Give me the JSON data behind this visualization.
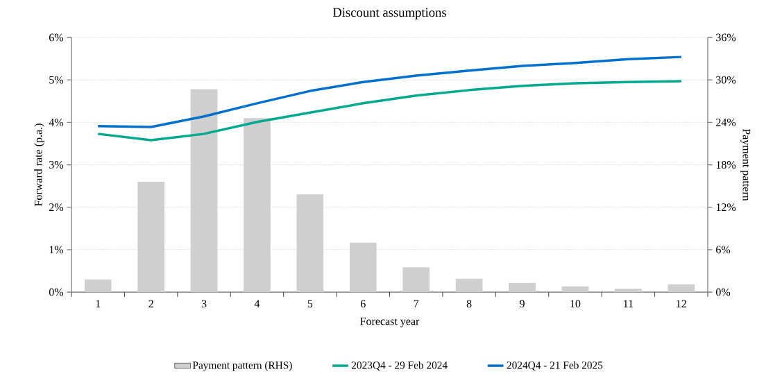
{
  "chart_data": {
    "type": "line",
    "title": "Discount assumptions",
    "xlabel": "Forecast year",
    "ylabel": "Forward rate (p.a.)",
    "y2label": "Payment pattern",
    "categories": [
      "1",
      "2",
      "3",
      "4",
      "5",
      "6",
      "7",
      "8",
      "9",
      "10",
      "11",
      "12"
    ],
    "series": [
      {
        "name": "Payment pattern (RHS)",
        "type": "bar",
        "axis": "y2",
        "color": "#d0cfd0",
        "values": [
          1.8,
          15.6,
          28.7,
          24.6,
          13.8,
          7.0,
          3.5,
          1.9,
          1.3,
          0.8,
          0.5,
          1.1
        ]
      },
      {
        "name": "2023Q4 - 29 Feb 2024",
        "color": "#00a98f",
        "values": [
          3.73,
          3.58,
          3.73,
          4.01,
          4.23,
          4.45,
          4.63,
          4.76,
          4.86,
          4.92,
          4.95,
          4.97
        ]
      },
      {
        "name": "2024Q4 - 21 Feb 2025",
        "color": "#0070cd",
        "values": [
          3.91,
          3.89,
          4.14,
          4.45,
          4.74,
          4.95,
          5.1,
          5.22,
          5.33,
          5.4,
          5.49,
          5.54
        ]
      }
    ],
    "ylim": [
      0,
      6
    ],
    "yticks": [
      {
        "value": 0,
        "label": "0%"
      },
      {
        "value": 1,
        "label": "1%"
      },
      {
        "value": 2,
        "label": "2%"
      },
      {
        "value": 3,
        "label": "3%"
      },
      {
        "value": 4,
        "label": "4%"
      },
      {
        "value": 5,
        "label": "5%"
      },
      {
        "value": 6,
        "label": "6%"
      }
    ],
    "y2lim": [
      0,
      36
    ],
    "y2ticks": [
      {
        "value": 0,
        "label": "0%"
      },
      {
        "value": 6,
        "label": "6%"
      },
      {
        "value": 12,
        "label": "12%"
      },
      {
        "value": 18,
        "label": "18%"
      },
      {
        "value": 24,
        "label": "24%"
      },
      {
        "value": 30,
        "label": "30%"
      },
      {
        "value": 36,
        "label": "36%"
      }
    ],
    "grid": "y",
    "legend": "bottom"
  }
}
